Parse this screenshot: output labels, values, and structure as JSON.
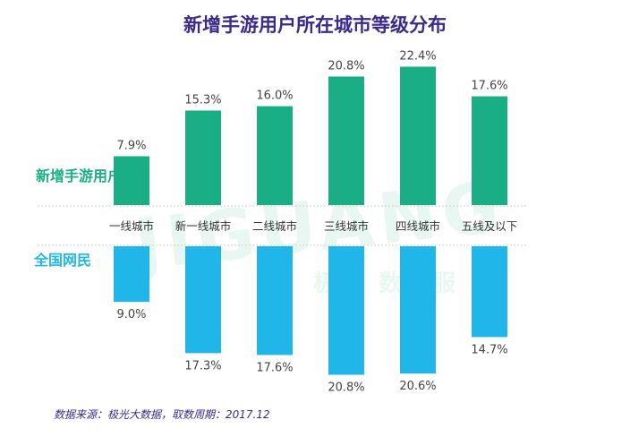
{
  "title": "新增手游用户所在城市等级分布",
  "source": "数据来源：极光大数据，取数周期：2017.12",
  "watermark": {
    "brand": "JIGUANG",
    "sub": "极光 数据服"
  },
  "colors": {
    "top": "#1aae84",
    "bottom": "#21b6ea",
    "title": "#3b2a8a",
    "label": "#444444",
    "separator": "#cfcfcf"
  },
  "chart_data": {
    "type": "bar",
    "title": "新增手游用户所在城市等级分布",
    "categories": [
      "一线城市",
      "新一线城市",
      "二线城市",
      "三线城市",
      "四线城市",
      "五线及以下"
    ],
    "series": [
      {
        "name": "新增手游用户",
        "values": [
          7.9,
          15.3,
          16.0,
          20.8,
          22.4,
          17.6
        ],
        "labels": [
          "7.9%",
          "15.3%",
          "16.0%",
          "20.8%",
          "22.4%",
          "17.6%"
        ]
      },
      {
        "name": "全国网民",
        "values": [
          9.0,
          17.3,
          17.6,
          20.8,
          20.6,
          14.7
        ],
        "labels": [
          "9.0%",
          "17.3%",
          "17.6%",
          "20.8%",
          "20.6%",
          "14.7%"
        ]
      }
    ],
    "ylim": [
      0,
      25
    ],
    "unit": "%",
    "layout": "mirrored bars: series 1 above category axis, series 2 below"
  }
}
